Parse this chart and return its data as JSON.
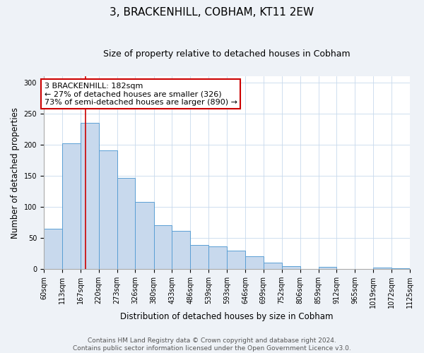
{
  "title": "3, BRACKENHILL, COBHAM, KT11 2EW",
  "subtitle": "Size of property relative to detached houses in Cobham",
  "xlabel": "Distribution of detached houses by size in Cobham",
  "ylabel": "Number of detached properties",
  "bin_edges": [
    60,
    113,
    167,
    220,
    273,
    326,
    380,
    433,
    486,
    539,
    593,
    646,
    699,
    752,
    806,
    859,
    912,
    965,
    1019,
    1072,
    1125
  ],
  "bar_heights": [
    65,
    202,
    235,
    191,
    146,
    108,
    70,
    61,
    39,
    37,
    30,
    21,
    10,
    5,
    0,
    4,
    0,
    0,
    2,
    1
  ],
  "bar_color": "#c8d9ed",
  "bar_edge_color": "#5a9fd4",
  "property_size": 182,
  "vline_color": "#cc0000",
  "annotation_text": "3 BRACKENHILL: 182sqm\n← 27% of detached houses are smaller (326)\n73% of semi-detached houses are larger (890) →",
  "annotation_box_edge_color": "#cc0000",
  "annotation_fontsize": 8,
  "title_fontsize": 11,
  "subtitle_fontsize": 9,
  "xlabel_fontsize": 8.5,
  "ylabel_fontsize": 8.5,
  "tick_fontsize": 7,
  "ylim": [
    0,
    310
  ],
  "yticks": [
    0,
    50,
    100,
    150,
    200,
    250,
    300
  ],
  "footer_text": "Contains HM Land Registry data © Crown copyright and database right 2024.\nContains public sector information licensed under the Open Government Licence v3.0.",
  "footer_fontsize": 6.5,
  "background_color": "#eef2f7",
  "plot_background_color": "#ffffff"
}
